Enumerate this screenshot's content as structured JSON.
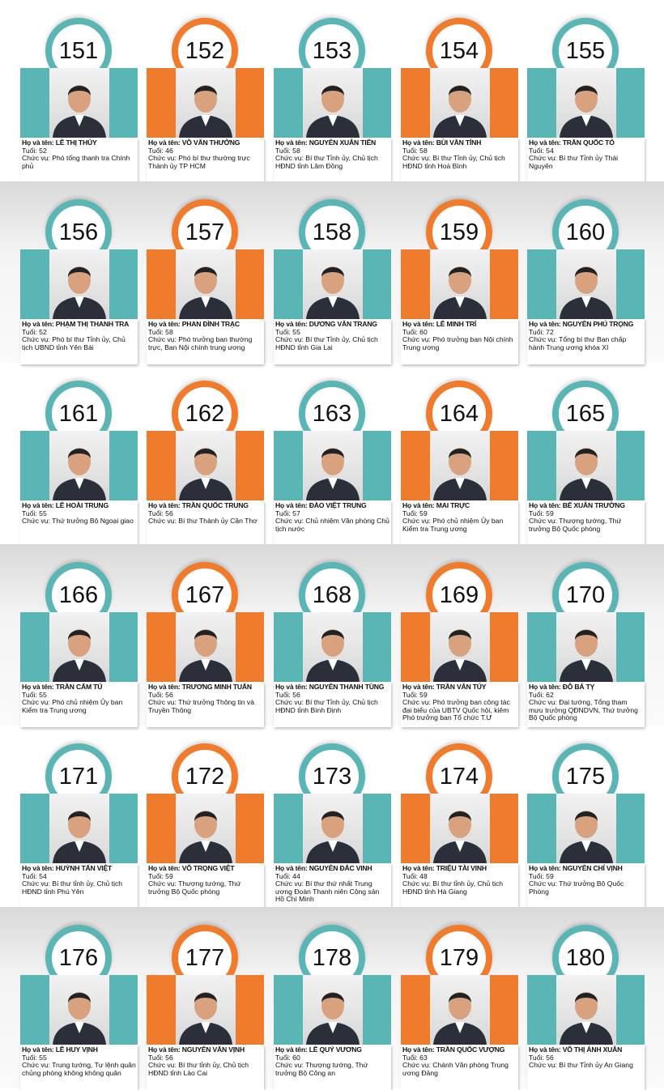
{
  "cards": [
    {
      "number": 151,
      "name": "Họ và tên: LÊ THỊ THỦY",
      "age": "Tuổi: 52",
      "position": "Chức vụ: Phó tổng thanh tra Chính phủ"
    },
    {
      "number": 152,
      "name": "Họ và tên: VÕ VĂN THƯỞNG",
      "age": "Tuổi: 46",
      "position": "Chức vụ: Phó bí thư thường trực Thành ủy TP HCM"
    },
    {
      "number": 153,
      "name": "Họ và tên: NGUYỄN XUÂN TIẾN",
      "age": "Tuổi: 58",
      "position": "Chức vụ: Bí thư Tỉnh ủy, Chủ tịch HĐND tỉnh Lâm Đồng"
    },
    {
      "number": 154,
      "name": "Họ và tên: BÙI VĂN TỈNH",
      "age": "Tuổi: 58",
      "position": "Chức vụ: Bí thư Tỉnh ủy, Chủ tịch HĐND tỉnh Hoà Bình"
    },
    {
      "number": 155,
      "name": "Họ và tên: TRẦN QUỐC TỎ",
      "age": "Tuổi: 54",
      "position": "Chức vụ: Bí thư Tỉnh ủy Thái Nguyên"
    },
    {
      "number": 156,
      "name": "Họ và tên: PHẠM THỊ THANH TRA",
      "age": "Tuổi: 52",
      "position": "Chức vụ: Phó bí thư Tỉnh ủy, Chủ tịch UBND tỉnh Yên Bái"
    },
    {
      "number": 157,
      "name": "Họ và tên: PHAN ĐÌNH TRẠC",
      "age": "Tuổi: 58",
      "position": "Chức vụ: Phó trưởng ban thường trực, Ban Nội chính trung ương"
    },
    {
      "number": 158,
      "name": "Họ và tên: DƯƠNG VĂN TRANG",
      "age": "Tuổi: 55",
      "position": "Chức vụ: Bí thư Tỉnh ủy, Chủ tịch HĐND tỉnh Gia Lai"
    },
    {
      "number": 159,
      "name": "Họ và tên: LÊ MINH TRÍ",
      "age": "Tuổi: 60",
      "position": "Chức vụ: Phó trưởng ban Nội chính Trung ương"
    },
    {
      "number": 160,
      "name": "Họ và tên: NGUYỄN PHÚ TRỌNG",
      "age": "Tuổi: 72",
      "position": "Chức vụ: Tổng bí thư Ban chấp hành Trung ương khóa XI"
    },
    {
      "number": 161,
      "name": "Họ và tên: LÊ HOÀI TRUNG",
      "age": "Tuổi: 55",
      "position": "Chức vụ: Thứ trưởng Bộ Ngoại giao"
    },
    {
      "number": 162,
      "name": "Họ và tên: TRẦN QUỐC TRUNG",
      "age": "Tuổi: 56",
      "position": "Chức vụ: Bí thư Thành ủy Cần Thơ"
    },
    {
      "number": 163,
      "name": "Họ và tên: ĐÀO VIỆT TRUNG",
      "age": "Tuổi: 57",
      "position": "Chức vụ: Chủ nhiệm Văn phòng Chủ tịch nước"
    },
    {
      "number": 164,
      "name": "Họ và tên: MAI TRỰC",
      "age": "Tuổi: 59",
      "position": "Chức vụ: Phó chủ nhiệm Ủy ban Kiểm tra Trung ương"
    },
    {
      "number": 165,
      "name": "Họ và tên: BẾ XUÂN TRƯỜNG",
      "age": "Tuổi: 59",
      "position": "Chức vụ: Thượng tướng, Thứ trưởng Bộ Quốc phòng"
    },
    {
      "number": 166,
      "name": "Họ và tên: TRẦN CẨM TÚ",
      "age": "Tuổi: 55",
      "position": "Chức vụ: Phó chủ nhiệm Ủy ban Kiểm tra Trung ương"
    },
    {
      "number": 167,
      "name": "Họ và tên: TRƯƠNG MINH TUẤN",
      "age": "Tuổi: 56",
      "position": "Chức vụ: Thứ trưởng Thông tin và Truyền Thông"
    },
    {
      "number": 168,
      "name": "Họ và tên: NGUYỄN THANH TÙNG",
      "age": "Tuổi: 56",
      "position": "Chức vụ: Bí thư Tỉnh ủy, Chủ tịch HĐND tỉnh Bình Định"
    },
    {
      "number": 169,
      "name": "Họ và tên: TRẦN VĂN TÚY",
      "age": "Tuổi: 59",
      "position": "Chức vụ: Phó trưởng ban công tác đại biểu của UBTV Quốc hội, kiêm Phó trưởng ban Tổ chức T.Ư"
    },
    {
      "number": 170,
      "name": "Họ và tên: ĐỖ BÁ TỴ",
      "age": "Tuổi: 62",
      "position": "Chức vụ: Đại tướng, Tổng tham mưu trưởng QĐNDVN, Thứ trưởng Bộ Quốc phòng"
    },
    {
      "number": 171,
      "name": "Họ và tên: HUỲNH TẤN VIỆT",
      "age": "Tuổi: 54",
      "position": "Chức vụ: Bí thư tỉnh ủy, Chủ tịch HĐND tỉnh Phú Yên"
    },
    {
      "number": 172,
      "name": "Họ và tên: VÕ TRỌNG VIỆT",
      "age": "Tuổi: 59",
      "position": "Chức vụ: Thượng tướng, Thứ trưởng Bộ Quốc phòng"
    },
    {
      "number": 173,
      "name": "Họ và tên: NGUYỄN ĐẮC VINH",
      "age": "Tuổi: 44",
      "position": "Chức vụ: Bí thư thứ nhất Trung ương Đoàn Thanh niên Cộng sản Hồ Chí Minh"
    },
    {
      "number": 174,
      "name": "Họ và tên: TRIỆU TÀI VINH",
      "age": "Tuổi: 48",
      "position": "Chức vụ: Bí thư tỉnh ủy, Chủ tịch HĐND tỉnh Hà Giang"
    },
    {
      "number": 175,
      "name": "Họ và tên: NGUYỄN CHÍ VỊNH",
      "age": "Tuổi: 59",
      "position": "Chức vụ: Thứ trưởng Bộ Quốc Phòng"
    },
    {
      "number": 176,
      "name": "Họ và tên: LÊ HUY VỊNH",
      "age": "Tuổi: 55",
      "position": "Chức vụ: Trung tướng, Tư lệnh quân chủng phòng không không quân"
    },
    {
      "number": 177,
      "name": "Họ và tên: NGUYỄN VĂN VỊNH",
      "age": "Tuổi: 56",
      "position": "Chức vụ: Bí thư tỉnh ủy, Chủ tịch HĐND tỉnh Lào Cai"
    },
    {
      "number": 178,
      "name": "Họ và tên: LÊ QUÝ VƯƠNG",
      "age": "Tuổi: 60",
      "position": "Chức vụ: Thượng tướng, Thứ trưởng Bộ Công an"
    },
    {
      "number": 179,
      "name": "Họ và tên: TRẦN QUỐC VƯỢNG",
      "age": "Tuổi: 63",
      "position": "Chức vụ: Chánh Văn phòng Trung ương Đảng"
    },
    {
      "number": 180,
      "name": "Họ và tên: VÕ THỊ ÁNH XUÂN",
      "age": "Tuổi: 56",
      "position": "Chức vụ: Bí thư Tỉnh ủy An Giang"
    }
  ]
}
